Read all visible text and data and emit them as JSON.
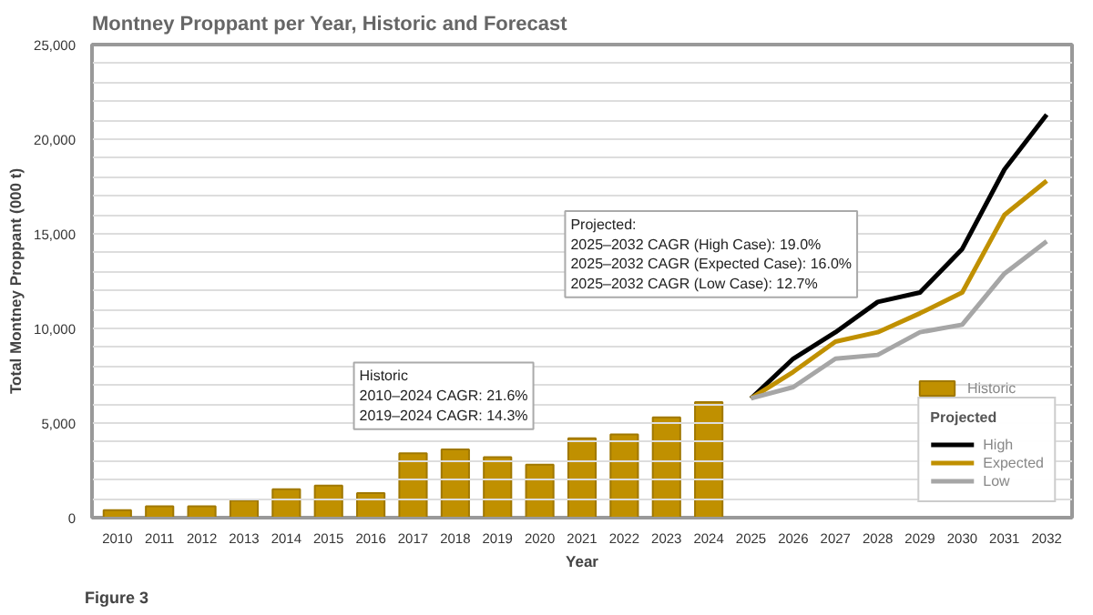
{
  "chart_data": {
    "type": "bar",
    "title": "Montney Proppant per Year, Historic and Forecast",
    "xlabel": "Year",
    "ylabel": "Total Montney Proppant (000 t)",
    "categories": [
      "2010",
      "2011",
      "2012",
      "2013",
      "2014",
      "2015",
      "2016",
      "2017",
      "2018",
      "2019",
      "2020",
      "2021",
      "2022",
      "2023",
      "2024",
      "2025",
      "2026",
      "2027",
      "2028",
      "2029",
      "2030",
      "2031",
      "2032"
    ],
    "series": [
      {
        "name": "Historic",
        "color": "#c09000",
        "values": [
          400,
          600,
          600,
          900,
          1500,
          1700,
          1300,
          3400,
          3600,
          3200,
          2800,
          4200,
          4400,
          5300,
          6100,
          null,
          null,
          null,
          null,
          null,
          null,
          null,
          null
        ]
      },
      {
        "name": "High",
        "type": "line",
        "color": "#000000",
        "values": [
          null,
          null,
          null,
          null,
          null,
          null,
          null,
          null,
          null,
          null,
          null,
          null,
          null,
          null,
          null,
          6300,
          8400,
          9800,
          11400,
          11900,
          14200,
          18400,
          21300
        ]
      },
      {
        "name": "Expected",
        "type": "line",
        "color": "#c09000",
        "values": [
          null,
          null,
          null,
          null,
          null,
          null,
          null,
          null,
          null,
          null,
          null,
          null,
          null,
          null,
          null,
          6300,
          7700,
          9300,
          9800,
          10800,
          11900,
          16000,
          17800
        ]
      },
      {
        "name": "Low",
        "type": "line",
        "color": "#a6a6a6",
        "values": [
          null,
          null,
          null,
          null,
          null,
          null,
          null,
          null,
          null,
          null,
          null,
          null,
          null,
          null,
          null,
          6300,
          6900,
          8400,
          8600,
          9800,
          10200,
          12900,
          14600
        ]
      }
    ],
    "ylim": [
      0,
      25000
    ],
    "yticks": [
      0,
      {
        "value": 1000,
        "label": null
      },
      {
        "value": 2000,
        "label": null
      },
      {
        "value": 3000,
        "label": null
      },
      {
        "value": 4000,
        "label": null
      },
      {
        "value": 5000,
        "label": "5,000"
      },
      {
        "value": 6000,
        "label": null
      },
      {
        "value": 7000,
        "label": null
      },
      {
        "value": 8000,
        "label": null
      },
      {
        "value": 9000,
        "label": null
      },
      {
        "value": 10000,
        "label": "10,000"
      },
      {
        "value": 11000,
        "label": null
      },
      {
        "value": 12000,
        "label": null
      },
      {
        "value": 13000,
        "label": null
      },
      {
        "value": 14000,
        "label": null
      },
      {
        "value": 15000,
        "label": "15,000"
      },
      {
        "value": 16000,
        "label": null
      },
      {
        "value": 17000,
        "label": null
      },
      {
        "value": 18000,
        "label": null
      },
      {
        "value": 19000,
        "label": null
      },
      {
        "value": 20000,
        "label": "20,000"
      },
      {
        "value": 21000,
        "label": null
      },
      {
        "value": 22000,
        "label": null
      },
      {
        "value": 23000,
        "label": null
      },
      {
        "value": 24000,
        "label": null
      },
      {
        "value": 25000,
        "label": "25,000"
      }
    ],
    "grid": "y",
    "legend": "bottom right",
    "legend_title": "Projected",
    "line_style": "solid",
    "annotations": [
      "Historic\n2010–2024 CAGR: 21.6%\n2019–2024 CAGR: 14.3%",
      "Projected:\n2025–2032 CAGR (High Case): 19.0%\n2025–2032 CAGR (Expected Case): 16.0%\n2025–2032 CAGR (Low Case): 12.7%",
      "Figure 3"
    ]
  }
}
